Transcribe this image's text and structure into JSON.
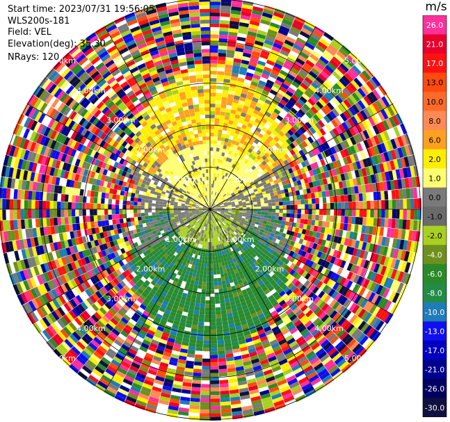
{
  "header": {
    "start_time": "Start time: 2023/07/31 19:56:05",
    "instrument": "WLS200s-181",
    "field": "Field: VEL",
    "elevation": "Elevation(deg): 35.30",
    "nrays": "NRays: 120"
  },
  "range_rings": {
    "labels": [
      "1.00km",
      "2.00km",
      "3.00km",
      "4.00km",
      "5.00km"
    ]
  },
  "colorbar": {
    "unit": "m/s",
    "tick_labels": [
      "26.0",
      "21.0",
      "17.0",
      "13.0",
      "10.0",
      "8.0",
      "6.0",
      "2.0",
      "1.0",
      "0.0",
      "-1.0",
      "-2.0",
      "-4.0",
      "-6.0",
      "-8.0",
      "-10.0",
      "-13.0",
      "-17.0",
      "-21.0",
      "-26.0",
      "-30.0"
    ],
    "colors": [
      "#ff2f9c",
      "#e8002a",
      "#ff1212",
      "#ff4a10",
      "#ff6a2a",
      "#ff8a55",
      "#ffa020",
      "#ffee00",
      "#ffff70",
      "#7a7a7a",
      "#6a6a6a",
      "#a8d020",
      "#6f8f1e",
      "#2a8a2a",
      "#238b45",
      "#1e7cb8",
      "#1010ee",
      "#0000c0",
      "#000090",
      "#000060",
      "#101040"
    ]
  },
  "chart_data": {
    "type": "ppi",
    "field": "VEL",
    "unit": "m/s",
    "nrays": 120,
    "elevation_deg": 35.3,
    "range_rings_km": [
      1,
      2,
      3,
      4,
      5
    ],
    "vmin": -30.0,
    "vmax": 26.0
  }
}
